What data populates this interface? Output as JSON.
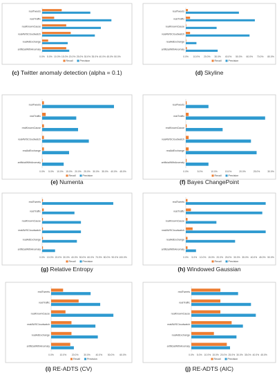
{
  "colors": {
    "recall": "#ED7D31",
    "precision": "#2E9AD0",
    "border": "#c9c9c9",
    "axis": "#d0d0d0"
  },
  "legend": {
    "recall": "Recall",
    "precision": "Precision"
  },
  "chart_data": [
    {
      "type": "bar",
      "orientation": "horizontal",
      "caption_letter": "(c)",
      "caption_text": "Twitter anomaly detection (alpha = 0.1)",
      "categories": [
        "realTweets",
        "realTraffic",
        "realKnownCause",
        "realAWSCloudwatch",
        "realAdExchange",
        "artificialWithAnomaly"
      ],
      "series": [
        {
          "name": "Recall",
          "values": [
            13,
            8,
            16,
            19,
            4,
            16
          ]
        },
        {
          "name": "Precision",
          "values": [
            32,
            46,
            39,
            35,
            17,
            18
          ]
        }
      ],
      "xlim": [
        0,
        50
      ],
      "xstep": 5,
      "xdecimals": 1,
      "grid": false,
      "legend_position": "bottom"
    },
    {
      "type": "bar",
      "orientation": "horizontal",
      "caption_letter": "(d)",
      "caption_text": "Skyline",
      "categories": [
        "realTweets",
        "realTraffic",
        "realKnownCause",
        "realAWSCloudwatch",
        "realAdExchange",
        "artificialWithAnomaly"
      ],
      "series": [
        {
          "name": "Recall",
          "values": [
            2,
            4,
            0,
            4,
            0,
            1
          ]
        },
        {
          "name": "Precision",
          "values": [
            50,
            65,
            29,
            60,
            10,
            30
          ]
        }
      ],
      "xlim": [
        0,
        80
      ],
      "xstep": 10,
      "xdecimals": 1,
      "grid": false,
      "legend_position": "bottom"
    },
    {
      "type": "bar",
      "orientation": "horizontal",
      "caption_letter": "(e)",
      "caption_text": "Numenta",
      "categories": [
        "realTweets",
        "realTraffic",
        "realKnownCause",
        "realAWSCloudwatch",
        "realAdExchange",
        "artificialWithAnomaly"
      ],
      "series": [
        {
          "name": "Recall",
          "values": [
            1,
            2,
            1,
            1,
            1,
            0
          ]
        },
        {
          "name": "Precision",
          "values": [
            40,
            19,
            20,
            26,
            15,
            12
          ]
        }
      ],
      "xlim": [
        0,
        45
      ],
      "xstep": 5,
      "xdecimals": 1,
      "grid": false,
      "legend_position": "bottom"
    },
    {
      "type": "bar",
      "orientation": "horizontal",
      "caption_letter": "(f)",
      "caption_text": "Bayes ChangePoint",
      "categories": [
        "realTweets",
        "realTraffic",
        "realKnownCause",
        "realAWSCloudwatch",
        "realAdExchange",
        "artificialWithAnomaly"
      ],
      "series": [
        {
          "name": "Recall",
          "values": [
            0.3,
            1,
            0.3,
            1,
            1,
            0.3
          ]
        },
        {
          "name": "Precision",
          "values": [
            8,
            28,
            13,
            23,
            25,
            8
          ]
        }
      ],
      "xlim": [
        0,
        30
      ],
      "xstep": 5,
      "xdecimals": 1,
      "grid": false,
      "legend_position": "bottom"
    },
    {
      "type": "bar",
      "orientation": "horizontal",
      "caption_letter": "(g)",
      "caption_text": "Relative Entropy",
      "categories": [
        "realTweets",
        "realTraffic",
        "realKnownCause",
        "realAWSCloudwatch",
        "realAdExchange",
        "artificialWithAnomaly"
      ],
      "series": [
        {
          "name": "Recall",
          "values": [
            1,
            2,
            1,
            1,
            1,
            1
          ]
        },
        {
          "name": "Precision",
          "values": [
            88,
            40,
            48,
            48,
            43,
            16
          ]
        }
      ],
      "xlim": [
        0,
        100
      ],
      "xstep": 10,
      "xdecimals": 1,
      "grid": false,
      "legend_position": "bottom"
    },
    {
      "type": "bar",
      "orientation": "horizontal",
      "caption_letter": "(h)",
      "caption_text": "Windowed Gaussian",
      "categories": [
        "realTweets",
        "realTraffic",
        "realKnownCause",
        "realAWSCloudwatch",
        "realAdExchange",
        "artificialWithAnomaly"
      ],
      "series": [
        {
          "name": "Recall",
          "values": [
            1,
            3,
            1,
            4,
            1,
            1
          ]
        },
        {
          "name": "Precision",
          "values": [
            47,
            45,
            18,
            47,
            29,
            6
          ]
        }
      ],
      "xlim": [
        0,
        50
      ],
      "xstep": 5,
      "xdecimals": 1,
      "grid": false,
      "legend_position": "bottom"
    },
    {
      "type": "bar",
      "orientation": "horizontal",
      "caption_letter": "(i)",
      "caption_text": "RE-ADTS (CV)",
      "categories": [
        "realTweets",
        "realTraffic",
        "realKnownCause",
        "realAWSCloudwatch",
        "realAdExchange",
        "artificialWithAnomaly"
      ],
      "series": [
        {
          "name": "Recall",
          "values": [
            10,
            23,
            12,
            17,
            17,
            16
          ]
        },
        {
          "name": "Precision",
          "values": [
            33,
            41,
            52,
            37,
            39,
            19
          ]
        }
      ],
      "xlim": [
        0,
        60
      ],
      "xstep": 10,
      "xdecimals": 1,
      "grid": false,
      "legend_position": "bottom"
    },
    {
      "type": "bar",
      "orientation": "horizontal",
      "caption_letter": "(j)",
      "caption_text": "RE-ADTS (AIC)",
      "categories": [
        "realTweets",
        "realTraffic",
        "realKnownCause",
        "realAWSCloudwatch",
        "realAdExchange",
        "artificialWithAnomaly"
      ],
      "series": [
        {
          "name": "Recall",
          "values": [
            18,
            18,
            18,
            25,
            14,
            22
          ]
        },
        {
          "name": "Precision",
          "values": [
            29,
            37,
            40,
            32,
            28,
            24
          ]
        }
      ],
      "xlim": [
        0,
        45
      ],
      "xstep": 5,
      "xdecimals": 1,
      "grid": false,
      "legend_position": "bottom"
    }
  ]
}
